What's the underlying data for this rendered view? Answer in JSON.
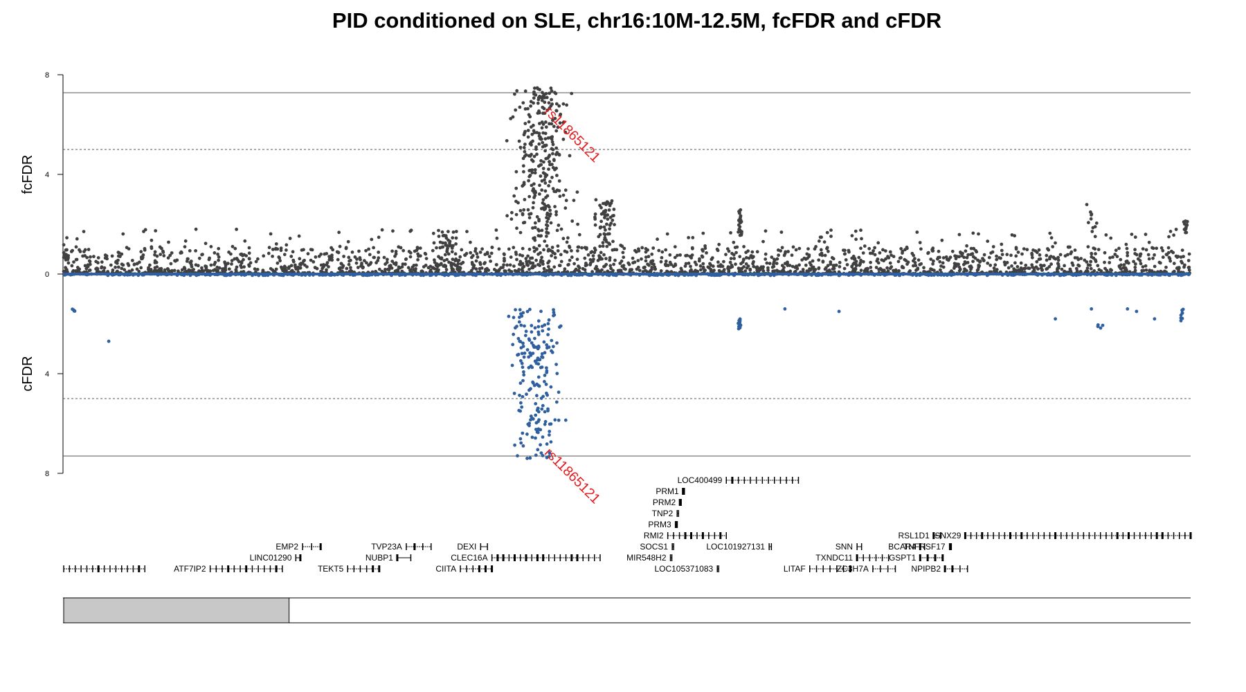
{
  "chart_data": {
    "type": "scatter",
    "title": "PID conditioned on SLE, chr16:10M-12.5M, fcFDR and cFDR",
    "region": {
      "chrom": "chr16",
      "start": 10000000,
      "end": 12500000
    },
    "top_panel": {
      "ylabel": "fcFDR",
      "ylim": [
        0,
        8
      ],
      "yticks": [
        "0",
        "4",
        "8"
      ],
      "threshold_solid": 7.3,
      "threshold_dashed": 5,
      "color": "#404040"
    },
    "bottom_panel": {
      "ylabel": "cFDR",
      "ylim": [
        0,
        8
      ],
      "yticks": [
        "0",
        "4",
        "8"
      ],
      "threshold_solid": 7.3,
      "threshold_dashed": 5,
      "color": "#2f5f9e"
    },
    "lead_snp": {
      "label": "rs11865121",
      "x": 11065000,
      "y_top": 6.5,
      "y_bottom": 7.2,
      "color": "#e41a1c"
    },
    "fc_clusters": [
      {
        "center": 11060000,
        "width": 100000,
        "n": 330,
        "ymin": 0.3,
        "ymax": 7.5
      },
      {
        "center": 11200000,
        "width": 40000,
        "n": 70,
        "ymin": 0.5,
        "ymax": 3.0
      },
      {
        "center": 10850000,
        "width": 50000,
        "n": 40,
        "ymin": 0.2,
        "ymax": 1.8
      },
      {
        "center": 11500000,
        "width": 8000,
        "n": 25,
        "ymin": 1.5,
        "ymax": 2.6
      },
      {
        "center": 12280000,
        "width": 20000,
        "n": 10,
        "ymin": 1.5,
        "ymax": 2.8
      },
      {
        "center": 12490000,
        "width": 10000,
        "n": 15,
        "ymin": 1.5,
        "ymax": 2.2
      }
    ],
    "c_clusters": [
      {
        "center": 11050000,
        "width": 90000,
        "n": 190,
        "ymin": 1.4,
        "ymax": 7.4
      },
      {
        "center": 11500000,
        "width": 5000,
        "n": 22,
        "ymin": 1.8,
        "ymax": 2.2
      },
      {
        "center": 10020000,
        "width": 8000,
        "n": 4,
        "ymin": 1.4,
        "ymax": 1.6
      },
      {
        "center": 12300000,
        "width": 12000,
        "n": 4,
        "ymin": 2.0,
        "ymax": 2.2
      },
      {
        "center": 12480000,
        "width": 15000,
        "n": 8,
        "ymin": 1.3,
        "ymax": 1.9
      }
    ],
    "c_extra_points": [
      [
        10100000,
        2.7
      ],
      [
        11600000,
        1.4
      ],
      [
        11720000,
        1.5
      ],
      [
        12420000,
        1.8
      ],
      [
        12280000,
        1.4
      ],
      [
        12200000,
        1.8
      ],
      [
        12380000,
        1.5
      ],
      [
        12360000,
        1.4
      ]
    ],
    "genes": [
      {
        "name": "LOC400499",
        "start": 11470000,
        "end": 11630000,
        "row": 0,
        "label_side": "left"
      },
      {
        "name": "PRM1",
        "start": 11374000,
        "end": 11375000,
        "row": 1,
        "label_side": "left"
      },
      {
        "name": "PRM2",
        "start": 11367000,
        "end": 11368000,
        "row": 2,
        "label_side": "left"
      },
      {
        "name": "TNP2",
        "start": 11361000,
        "end": 11362000,
        "row": 3,
        "label_side": "left"
      },
      {
        "name": "PRM3",
        "start": 11357000,
        "end": 11358000,
        "row": 4,
        "label_side": "left"
      },
      {
        "name": "RMI2",
        "start": 11340000,
        "end": 11470000,
        "row": 5,
        "label_side": "left"
      },
      {
        "name": "RSL1D1",
        "start": 11930000,
        "end": 11945000,
        "row": 5,
        "label_side": "left"
      },
      {
        "name": "SNX29",
        "start": 12000000,
        "end": 12500000,
        "row": 5,
        "label_side": "left"
      },
      {
        "name": "EMP2",
        "start": 10530000,
        "end": 10570000,
        "row": 6,
        "label_side": "left"
      },
      {
        "name": "TVP23A",
        "start": 10760000,
        "end": 10815000,
        "row": 6,
        "label_side": "left"
      },
      {
        "name": "DEXI",
        "start": 10925000,
        "end": 10940000,
        "row": 6,
        "label_side": "left"
      },
      {
        "name": "SOCS1",
        "start": 11350000,
        "end": 11352000,
        "row": 6,
        "label_side": "left"
      },
      {
        "name": "LOC101927131",
        "start": 11565000,
        "end": 11570000,
        "row": 6,
        "label_side": "left"
      },
      {
        "name": "SNN",
        "start": 11760000,
        "end": 11770000,
        "row": 6,
        "label_side": "left"
      },
      {
        "name": "BCAR4",
        "start": 11900000,
        "end": 11910000,
        "row": 6,
        "label_side": "left"
      },
      {
        "name": "TNFRSF17",
        "start": 11965000,
        "end": 11968000,
        "row": 6,
        "label_side": "left"
      },
      {
        "name": "LINC01290",
        "start": 10515000,
        "end": 10525000,
        "row": 7,
        "label_side": "left"
      },
      {
        "name": "NUBP1",
        "start": 10740000,
        "end": 10770000,
        "row": 7,
        "label_side": "left"
      },
      {
        "name": "CLEC16A",
        "start": 10950000,
        "end": 11190000,
        "row": 7,
        "label_side": "left"
      },
      {
        "name": "MIR548H2",
        "start": 11346000,
        "end": 11348000,
        "row": 7,
        "label_side": "left"
      },
      {
        "name": "TXNDC11",
        "start": 11760000,
        "end": 11830000,
        "row": 7,
        "label_side": "left"
      },
      {
        "name": "GSPT1",
        "start": 11900000,
        "end": 11950000,
        "row": 7,
        "label_side": "left"
      },
      {
        "name": "ATF7IP2",
        "start": 10325000,
        "end": 10485000,
        "row": 8,
        "label_side": "left"
      },
      {
        "name": "",
        "start": 10000000,
        "end": 10180000,
        "row": 8,
        "label_side": "left"
      },
      {
        "name": "TEKT5",
        "start": 10630000,
        "end": 10700000,
        "row": 8,
        "label_side": "left"
      },
      {
        "name": "CIITA",
        "start": 10880000,
        "end": 10950000,
        "row": 8,
        "label_side": "left"
      },
      {
        "name": "LOC105371083",
        "start": 11450000,
        "end": 11453000,
        "row": 8,
        "label_side": "left"
      },
      {
        "name": "LITAF",
        "start": 11655000,
        "end": 11745000,
        "row": 8,
        "label_side": "left"
      },
      {
        "name": "ZC3H7A",
        "start": 11795000,
        "end": 11845000,
        "row": 8,
        "label_side": "left"
      },
      {
        "name": "NPIPB2",
        "start": 11955000,
        "end": 12005000,
        "row": 8,
        "label_side": "left"
      }
    ],
    "ideogram_band": {
      "start": 10000000,
      "end": 10500000
    },
    "seed": 7
  }
}
